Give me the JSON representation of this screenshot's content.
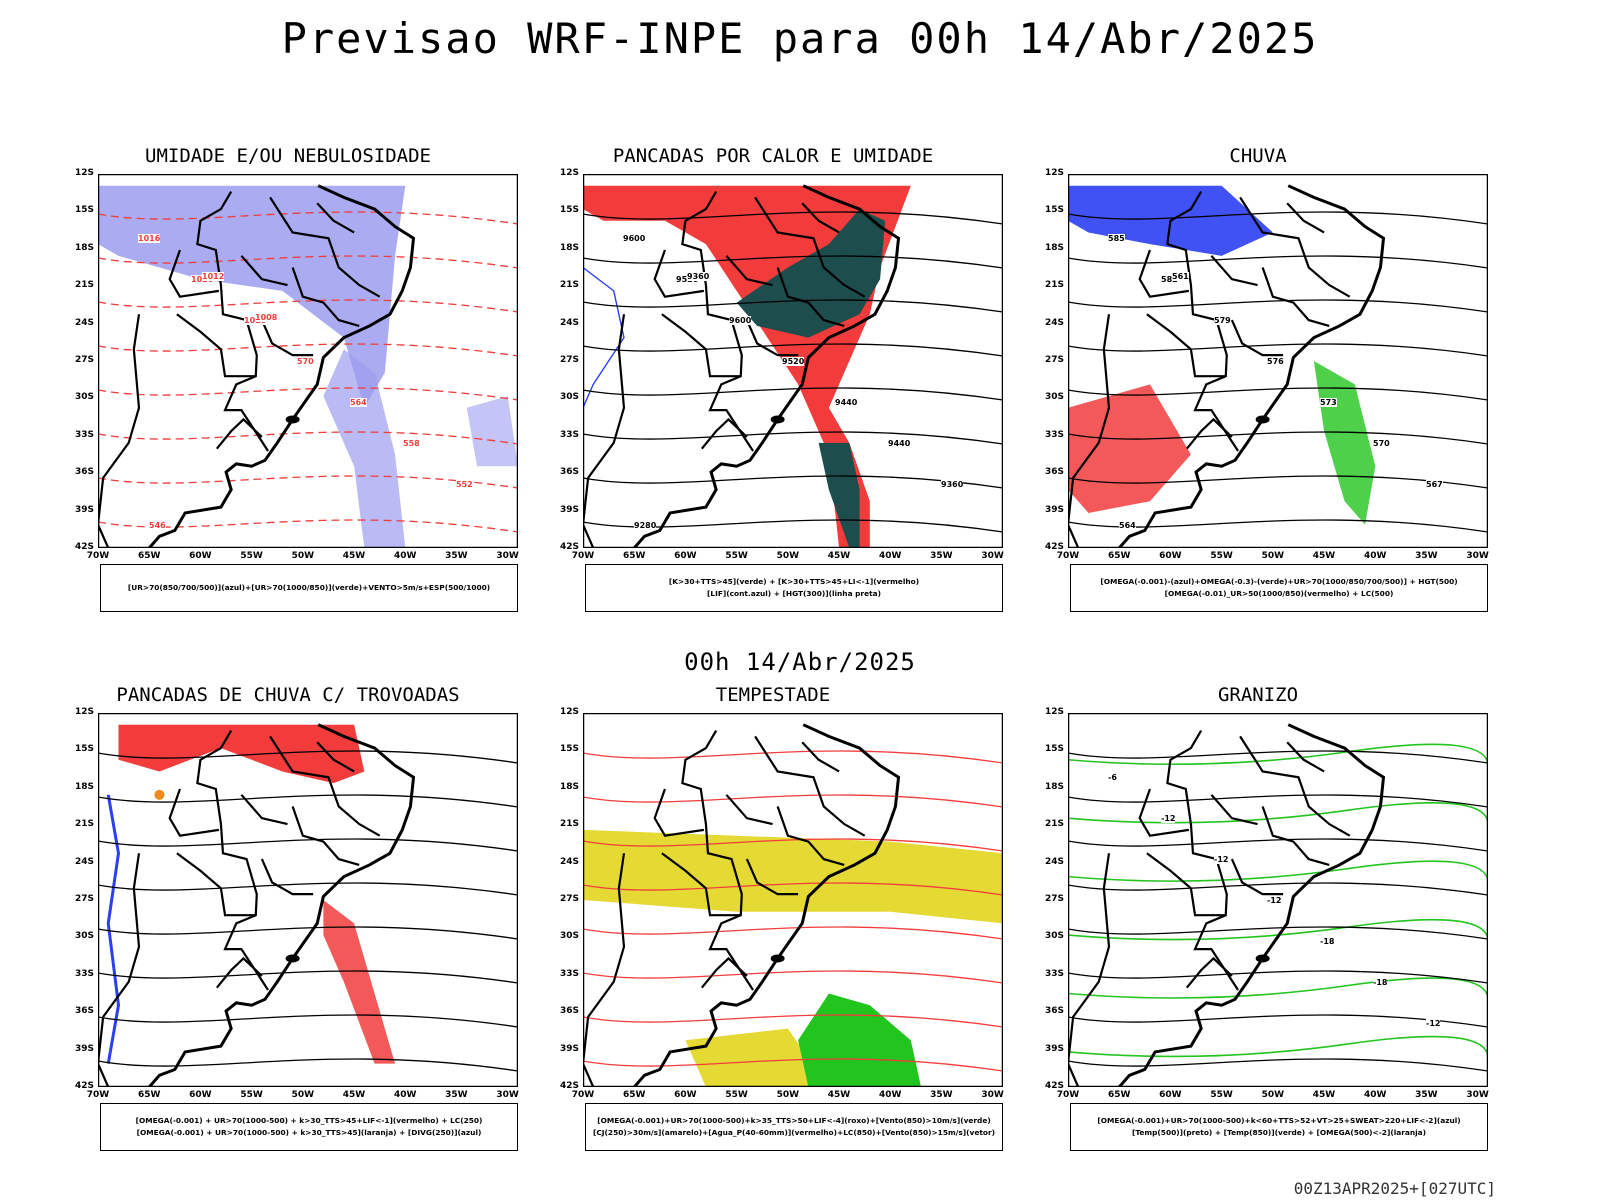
{
  "title": "Previsao WRF-INPE  para 00h 14/Abr/2025",
  "mid_date": "00h 14/Abr/2025",
  "footer": "00Z13APR2025+[027UTC]",
  "axes": {
    "lat_labels": [
      "12S",
      "15S",
      "18S",
      "21S",
      "24S",
      "27S",
      "30S",
      "33S",
      "36S",
      "39S",
      "42S"
    ],
    "lon_labels": [
      "70W",
      "65W",
      "60W",
      "55W",
      "50W",
      "45W",
      "40W",
      "35W",
      "30W"
    ]
  },
  "colors": {
    "blue": "#2b3ff2",
    "lavender": "#9c9cf0",
    "green": "#22c41e",
    "red": "#f23c3c",
    "darkteal": "#1e4d4d",
    "orange": "#f08a1e",
    "yellow": "#e5d933",
    "black": "#000000"
  },
  "panels": [
    {
      "title": "UMIDADE E/OU NEBULOSIDADE",
      "legend": [
        "[UR>70(850/700/500)](azul)+[UR>70(1000/850)](verde)+VENTO>5m/s+ESP(500/1000)"
      ],
      "contour_labels": [
        "1016",
        "1020",
        "1016",
        "570",
        "564",
        "558",
        "552",
        "546",
        "1012",
        "1008"
      ]
    },
    {
      "title": "PANCADAS POR CALOR E UMIDADE",
      "legend": [
        "[K>30+TTS>45](verde) + [K>30+TTS>45+LI<-1](vermelho)",
        "[LIF](cont.azul) + [HGT(300)](linha preta)"
      ],
      "contour_labels": [
        "9600",
        "9520",
        "9600",
        "9520",
        "9440",
        "9440",
        "9360",
        "9280",
        "9360"
      ]
    },
    {
      "title": "CHUVA",
      "legend": [
        "[OMEGA(-0.001)-(azul)+OMEGA(-0.3)-(verde)+UR>70(1000/850/700/500)] + HGT(500)",
        "[OMEGA(-0.01)_UR>50(1000/850)(vermelho) + LC(500)"
      ],
      "contour_labels": [
        "585",
        "582",
        "579",
        "576",
        "573",
        "570",
        "567",
        "564",
        "561"
      ]
    },
    {
      "title": "PANCADAS DE CHUVA C/ TROVOADAS",
      "legend": [
        "[OMEGA(-0.001) + UR>70(1000-500) + k>30_TTS>45+LIF<-1](vermelho) + LC(250)",
        "[OMEGA(-0.001) + UR>70(1000-500) + k>30_TTS>45](laranja) + [DIVG(250)](azul)"
      ],
      "contour_labels": []
    },
    {
      "title": "TEMPESTADE",
      "legend": [
        "[OMEGA(-0.001)+UR>70(1000-500)+k>35_TTS>50+LIF<-4](roxo)+[Vento(850)>10m/s](verde)",
        "[CJ(250)>30m/s](amarelo)+[Agua_P(40-60mm)](vermelho)+LC(850)+[Vento(850)>15m/s](vetor)"
      ],
      "contour_labels": []
    },
    {
      "title": "GRANIZO",
      "legend": [
        "[OMEGA(-0.001)+UR>70(1000-500)+k<60+TTS>52+VT>25+SWEAT>220+LIF<-2](azul)",
        "[Temp(500)](preto) + [Temp(850)](verde) + [OMEGA(500)<-2](laranja)"
      ],
      "contour_labels": [
        "-6",
        "-12",
        "-12",
        "-12",
        "-18",
        "-18",
        "-12"
      ]
    }
  ]
}
